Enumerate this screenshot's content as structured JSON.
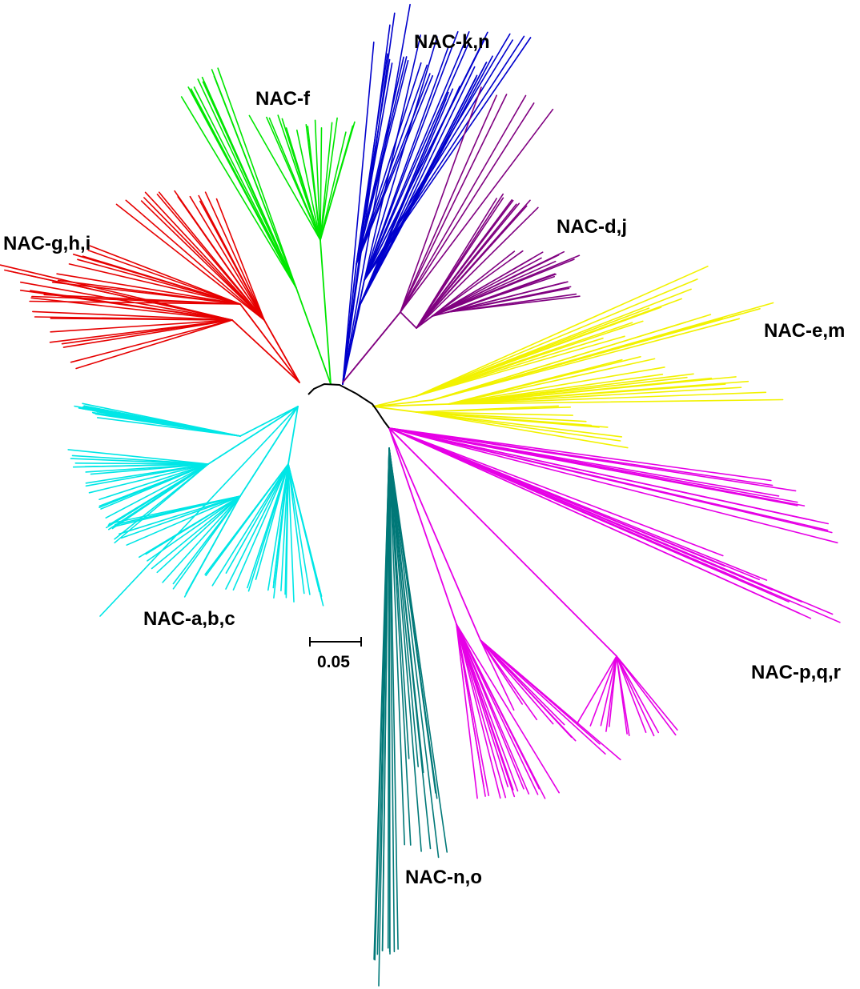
{
  "scale_bar": {
    "label": "0.05"
  },
  "clades": {
    "k_n": {
      "label": "NAC-k,n",
      "color": "#0000CC"
    },
    "f": {
      "label": "NAC-f",
      "color": "#00E600"
    },
    "d_j": {
      "label": "NAC-d,j",
      "color": "#800080"
    },
    "g_h_i": {
      "label": "NAC-g,h,i",
      "color": "#E60000"
    },
    "e_m": {
      "label": "NAC-e,m",
      "color": "#F2F200"
    },
    "a_b_c": {
      "label": "NAC-a,b,c",
      "color": "#00E6E6"
    },
    "p_q_r": {
      "label": "NAC-p,q,r",
      "color": "#E600E6"
    },
    "n_o": {
      "label": "NAC-n,o",
      "color": "#007878"
    }
  },
  "backbone_color": "#000000"
}
